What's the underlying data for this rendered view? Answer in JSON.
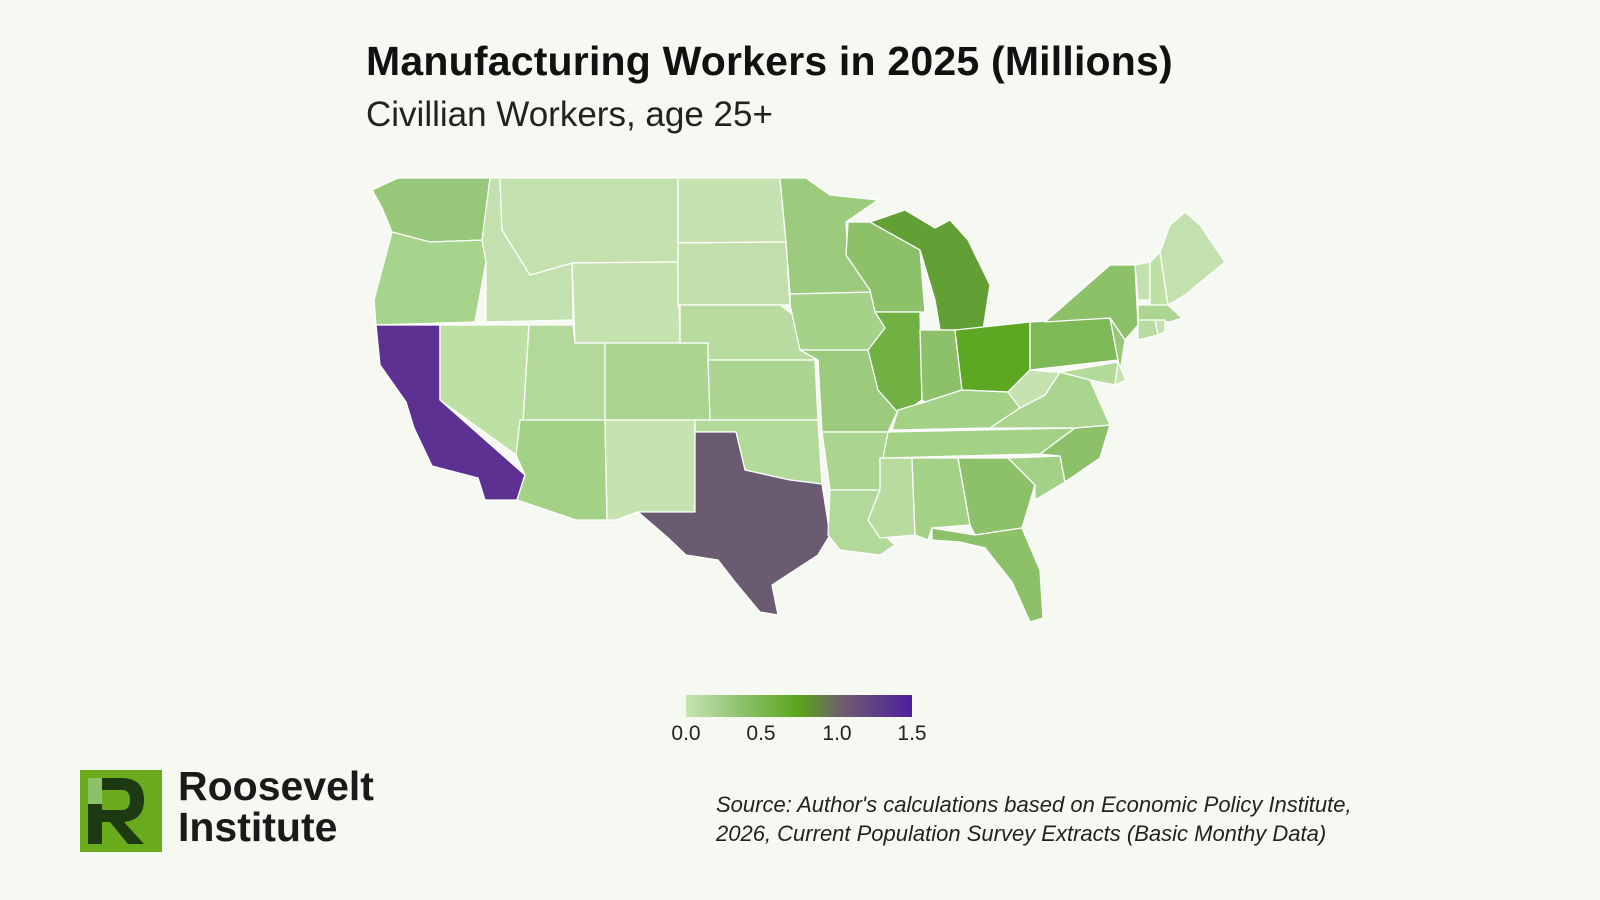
{
  "title": "Manufacturing Workers in 2025 (Millions)",
  "subtitle": "Civillian Workers, age 25+",
  "legend": {
    "ticks": [
      "0.0",
      "0.5",
      "1.0",
      "1.5"
    ],
    "range": [
      0,
      1.5
    ],
    "colors": [
      "#c8e3b2",
      "#8cc16a",
      "#5aa51c",
      "#6e5a70",
      "#4f1f9e"
    ]
  },
  "map_data": {
    "type": "choropleth",
    "region": "Contiguous United States",
    "unit": "Millions",
    "highlighted_states": [
      {
        "state": "CA",
        "value": 1.45,
        "color": "#5c3192"
      },
      {
        "state": "TX",
        "value": 1.2,
        "color": "#6a5b70"
      },
      {
        "state": "OH",
        "value": 0.75,
        "color": "#5da823"
      },
      {
        "state": "MI",
        "value": 0.68,
        "color": "#629f34"
      },
      {
        "state": "IL",
        "value": 0.62,
        "color": "#71b043"
      }
    ]
  },
  "logo": {
    "line1": "Roosevelt",
    "line2": "Institute"
  },
  "source": {
    "line1": "Source: Author's calculations based on Economic Policy Institute,",
    "line2": "2026, Current Population Survey Extracts (Basic Monthy Data)"
  }
}
